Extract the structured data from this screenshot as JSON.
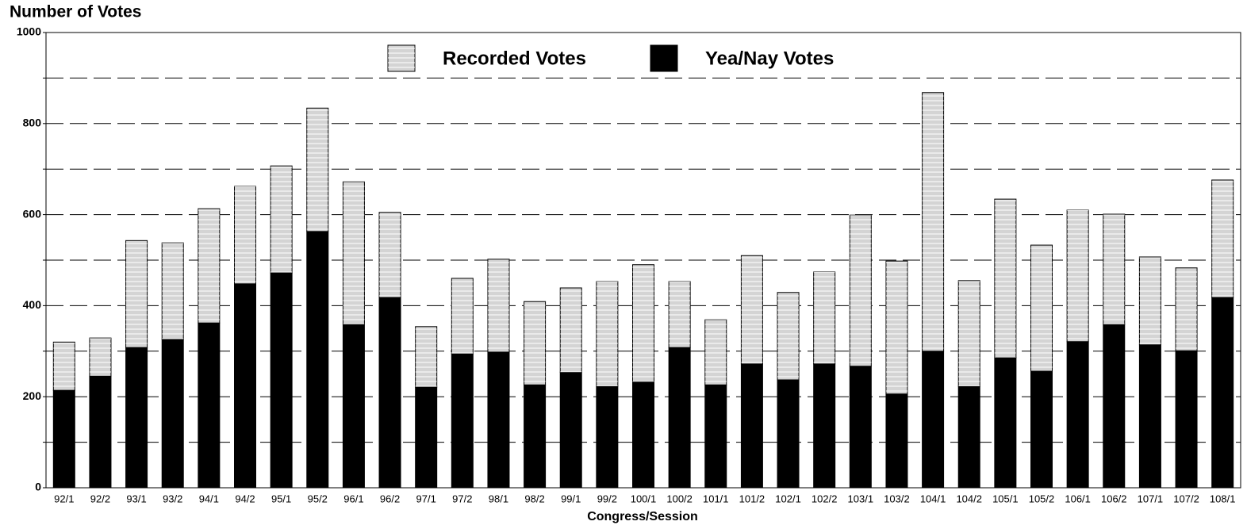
{
  "chart_data": {
    "type": "stacked_bar",
    "title": "Number of Votes",
    "x_label": "Congress/Session",
    "categories": [
      "92/1",
      "92/2",
      "93/1",
      "93/2",
      "94/1",
      "94/2",
      "95/1",
      "95/2",
      "96/1",
      "96/2",
      "97/1",
      "97/2",
      "98/1",
      "98/2",
      "99/1",
      "99/2",
      "100/1",
      "100/2",
      "101/1",
      "101/2",
      "102/1",
      "102/2",
      "103/1",
      "103/2",
      "104/1",
      "104/2",
      "105/1",
      "105/2",
      "106/1",
      "106/2",
      "107/1",
      "107/2",
      "108/1"
    ],
    "series": [
      {
        "name": "Yea/Nay Votes",
        "color": "#000000",
        "values": [
          214,
          245,
          308,
          326,
          362,
          448,
          472,
          563,
          359,
          418,
          221,
          294,
          298,
          226,
          254,
          223,
          233,
          308,
          226,
          272,
          237,
          272,
          267,
          206,
          300,
          223,
          286,
          256,
          321,
          359,
          314,
          301,
          418
        ]
      },
      {
        "name": "Recorded Votes",
        "color": "#d4d4d4",
        "values": [
          106,
          84,
          235,
          212,
          251,
          214,
          235,
          271,
          313,
          187,
          133,
          166,
          204,
          183,
          185,
          230,
          257,
          145,
          143,
          238,
          192,
          202,
          332,
          292,
          568,
          232,
          348,
          277,
          289,
          242,
          193,
          182,
          258
        ]
      }
    ],
    "ylim": [
      0,
      1000
    ],
    "yticks": [
      0,
      {
        "value": 100,
        "label": null
      },
      200,
      {
        "value": 300,
        "label": null
      },
      400,
      {
        "value": 500,
        "label": null
      },
      600,
      {
        "value": 700,
        "label": null
      },
      800,
      {
        "value": 900,
        "label": null
      },
      1000
    ],
    "grid": true,
    "legend": "top"
  }
}
